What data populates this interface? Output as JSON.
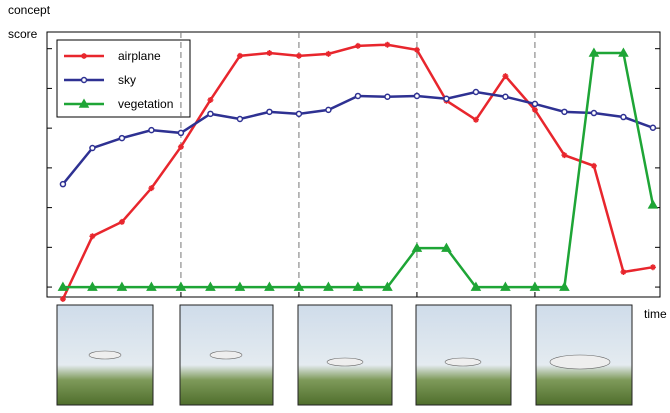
{
  "chart_data": {
    "type": "line",
    "y_label": [
      "concept",
      "score"
    ],
    "x_label": "time",
    "x": [
      0,
      1,
      2,
      3,
      4,
      5,
      6,
      7,
      8,
      9,
      10,
      11,
      12,
      13,
      14,
      15,
      16,
      17,
      18,
      19,
      20
    ],
    "xlim": [
      -0.54,
      20.24
    ],
    "xticks": [
      4,
      8,
      12,
      16
    ],
    "ylim": [
      -0.25,
      6.42
    ],
    "yticks": [
      0,
      1,
      2,
      3,
      4,
      5,
      6
    ],
    "grid": "x-dashed",
    "legend": "upper left",
    "series": [
      {
        "name": "airplane",
        "color": "#e8262d",
        "marker": "star",
        "values": [
          -0.3,
          1.28,
          1.64,
          2.49,
          3.53,
          4.71,
          5.82,
          5.89,
          5.82,
          5.87,
          6.07,
          6.1,
          5.97,
          4.69,
          4.21,
          5.31,
          4.46,
          3.32,
          3.05,
          0.38,
          0.5
        ]
      },
      {
        "name": "sky",
        "color": "#2e3192",
        "marker": "circle",
        "values": [
          2.59,
          3.5,
          3.75,
          3.95,
          3.88,
          4.36,
          4.23,
          4.41,
          4.36,
          4.46,
          4.81,
          4.79,
          4.81,
          4.74,
          4.91,
          4.79,
          4.61,
          4.41,
          4.38,
          4.28,
          4.01
        ]
      },
      {
        "name": "vegetation",
        "color": "#1ea536",
        "marker": "triangle",
        "values": [
          0,
          0,
          0,
          0,
          0,
          0,
          0,
          0,
          0,
          0,
          0,
          0,
          0.98,
          0.98,
          0,
          0,
          0,
          0,
          5.89,
          5.89,
          2.07
        ]
      }
    ]
  }
}
